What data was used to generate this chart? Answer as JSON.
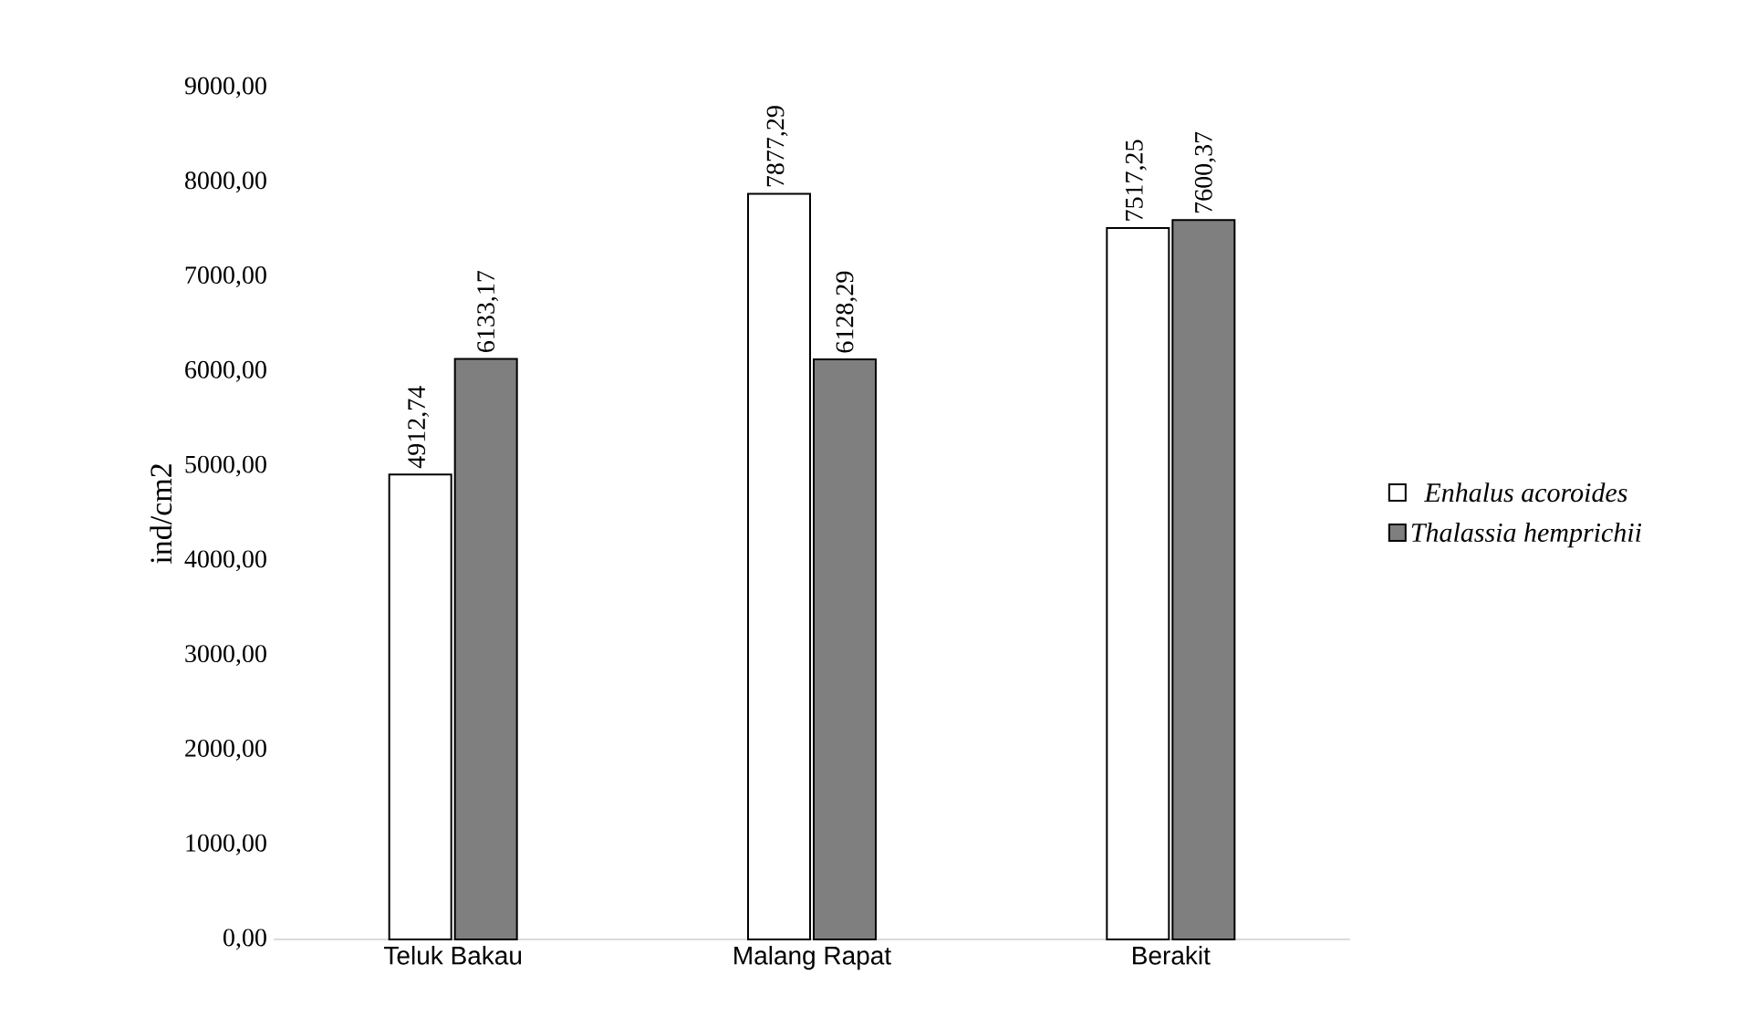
{
  "chart_data": {
    "type": "bar",
    "ylabel": "ind/cm2",
    "categories": [
      "Teluk Bakau",
      "Malang Rapat",
      "Berakit"
    ],
    "series": [
      {
        "name": "Enhalus acoroides",
        "color": "#ffffff",
        "values": [
          4912.74,
          7877.29,
          7517.25
        ],
        "value_labels": [
          "4912,74",
          "7877,29",
          "7517,25"
        ]
      },
      {
        "name": "Thalassia hemprichii",
        "color": "#7f7f7f",
        "values": [
          6133.17,
          6128.29,
          7600.37
        ],
        "value_labels": [
          "6133,17",
          "6128,29",
          "7600,37"
        ]
      }
    ],
    "ylim": [
      0,
      9000
    ],
    "yticks": [
      {
        "value": 0,
        "label": "0,00"
      },
      {
        "value": 1000,
        "label": "1000,00"
      },
      {
        "value": 2000,
        "label": "2000,00"
      },
      {
        "value": 3000,
        "label": "3000,00"
      },
      {
        "value": 4000,
        "label": "4000,00"
      },
      {
        "value": 5000,
        "label": "5000,00"
      },
      {
        "value": 6000,
        "label": "6000,00"
      },
      {
        "value": 7000,
        "label": "7000,00"
      },
      {
        "value": 8000,
        "label": "8000,00"
      },
      {
        "value": 9000,
        "label": "9000,00"
      }
    ],
    "grid": false,
    "legend": "right"
  }
}
